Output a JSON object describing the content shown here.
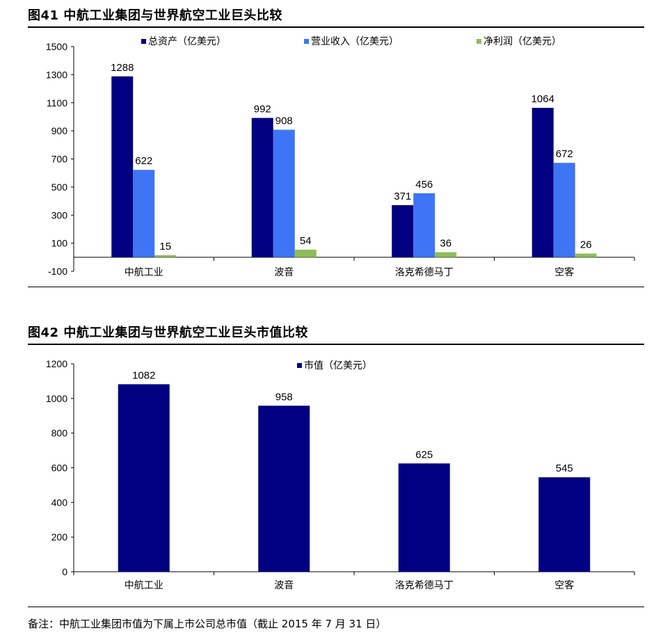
{
  "figure1": {
    "title": "图41 中航工业集团与世界航空工业巨头比较"
  },
  "figure2": {
    "title": "图42 中航工业集团与世界航空工业巨头市值比较"
  },
  "note": "备注：中航工业集团市值为下属上市公司总市值（截止 2015 年 7 月 31 日）",
  "colors": {
    "navy": "#000080",
    "blue": "#3e75f5",
    "green": "#8fbd5a"
  },
  "chart_data": [
    {
      "type": "bar",
      "title": "图41 中航工业集团与世界航空工业巨头比较",
      "categories": [
        "中航工业",
        "波音",
        "洛克希德马丁",
        "空客"
      ],
      "series": [
        {
          "name": "总资产（亿美元）",
          "values": [
            1288,
            992,
            371,
            1064
          ],
          "color": "#000080"
        },
        {
          "name": "营业收入（亿美元）",
          "values": [
            622,
            908,
            456,
            672
          ],
          "color": "#3e75f5"
        },
        {
          "name": "净利润（亿美元）",
          "values": [
            15,
            54,
            36,
            26
          ],
          "color": "#8fbd5a"
        }
      ],
      "ylim": [
        -100,
        1500
      ],
      "yticks": [
        -100,
        100,
        300,
        500,
        700,
        900,
        1100,
        1300,
        1500
      ],
      "grid": false,
      "legend": "top"
    },
    {
      "type": "bar",
      "title": "图42 中航工业集团与世界航空工业巨头市值比较",
      "categories": [
        "中航工业",
        "波音",
        "洛克希德马丁",
        "空客"
      ],
      "series": [
        {
          "name": "市值（亿美元）",
          "values": [
            1082,
            958,
            625,
            545
          ],
          "color": "#000080"
        }
      ],
      "ylim": [
        0,
        1200
      ],
      "yticks": [
        0,
        200,
        400,
        600,
        800,
        1000,
        1200
      ],
      "grid": false,
      "legend": "top"
    }
  ]
}
